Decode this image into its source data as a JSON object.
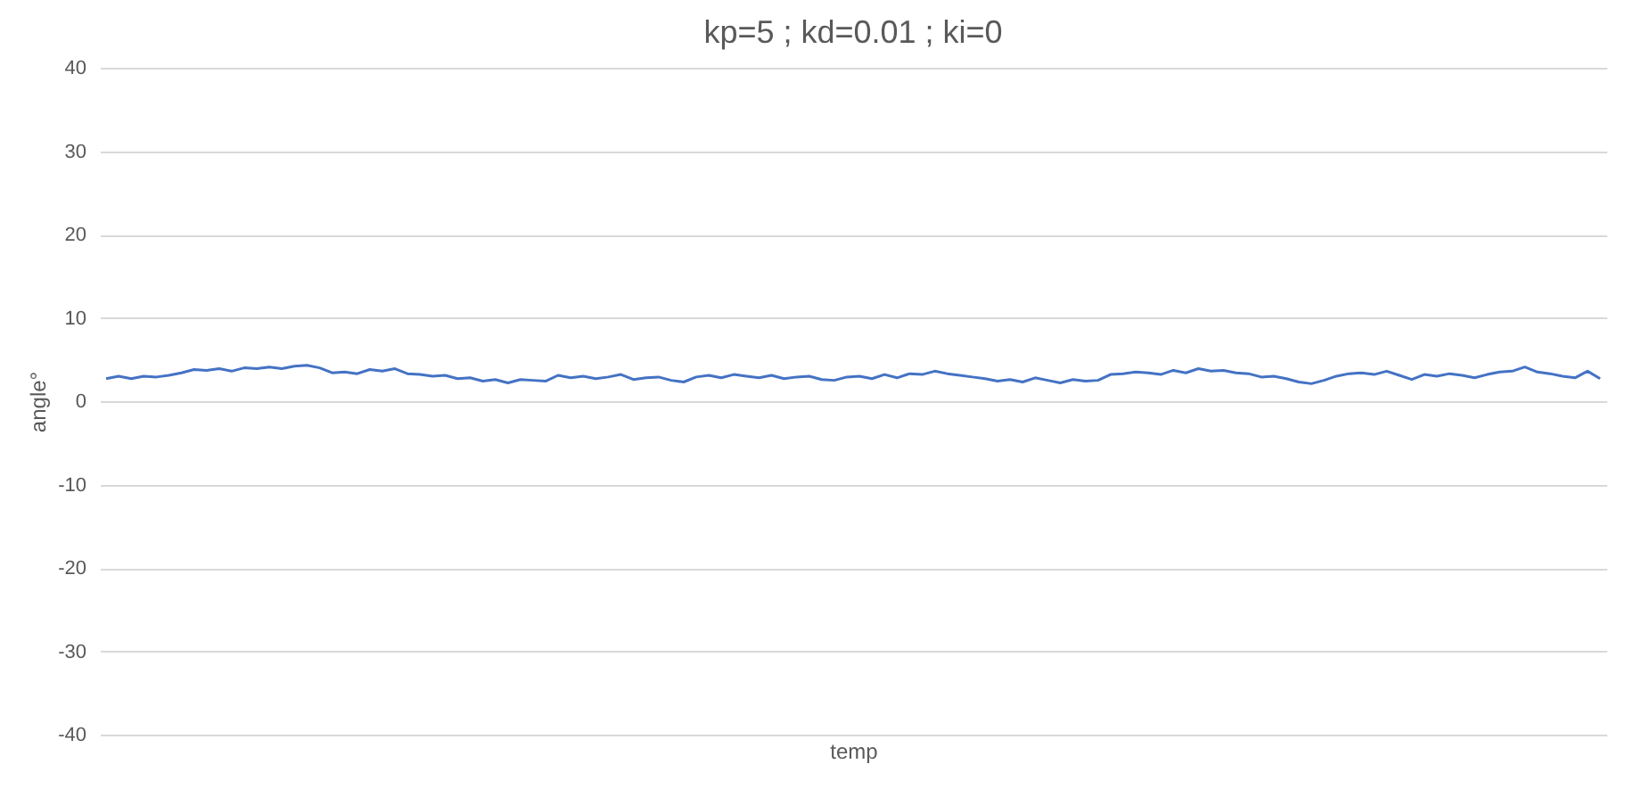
{
  "chart_data": {
    "type": "line",
    "title": "kp=5 ; kd=0.01 ; ki=0",
    "xlabel": "temp",
    "ylabel": "angle°",
    "categories": [
      null,
      null,
      null,
      null,
      null,
      null,
      null,
      null,
      null,
      null,
      null,
      null,
      null,
      null,
      null,
      null,
      null,
      null,
      null,
      null,
      null,
      null,
      null,
      null,
      null,
      null,
      null,
      null,
      null,
      null,
      null,
      null,
      null,
      null,
      null,
      null,
      null,
      null,
      null,
      null,
      null,
      null,
      null,
      null,
      null,
      null,
      null,
      null,
      null,
      null,
      null,
      null,
      null,
      null,
      null,
      null,
      null,
      null,
      null,
      null,
      null,
      null,
      null,
      null,
      null,
      null,
      null,
      null,
      null,
      null,
      null,
      null,
      null,
      null,
      null,
      null,
      null,
      null,
      null,
      null,
      null,
      null,
      null,
      null,
      null,
      null,
      null,
      null,
      null,
      null,
      null,
      null,
      null,
      null,
      null,
      null,
      null,
      null,
      null,
      null,
      null,
      null,
      null,
      null,
      null,
      null,
      null,
      null,
      null,
      null,
      null,
      null,
      null,
      null,
      null,
      null,
      null,
      null,
      null,
      null
    ],
    "series": [
      {
        "color": "#4472c4",
        "values": [
          2.7,
          3.0,
          2.7,
          3.0,
          2.9,
          3.1,
          3.4,
          3.8,
          3.7,
          3.9,
          3.6,
          4.0,
          3.9,
          4.1,
          3.9,
          4.2,
          4.3,
          4.0,
          3.4,
          3.5,
          3.3,
          3.8,
          3.6,
          3.9,
          3.3,
          3.2,
          3.0,
          3.1,
          2.7,
          2.8,
          2.4,
          2.6,
          2.2,
          2.6,
          2.5,
          2.4,
          3.1,
          2.8,
          3.0,
          2.7,
          2.9,
          3.2,
          2.6,
          2.8,
          2.9,
          2.5,
          2.3,
          2.9,
          3.1,
          2.8,
          3.2,
          3.0,
          2.8,
          3.1,
          2.7,
          2.9,
          3.0,
          2.6,
          2.5,
          2.9,
          3.0,
          2.7,
          3.2,
          2.8,
          3.3,
          3.2,
          3.6,
          3.3,
          3.1,
          2.9,
          2.7,
          2.4,
          2.6,
          2.3,
          2.8,
          2.5,
          2.2,
          2.6,
          2.4,
          2.5,
          3.2,
          3.3,
          3.5,
          3.4,
          3.2,
          3.7,
          3.4,
          3.9,
          3.6,
          3.7,
          3.4,
          3.3,
          2.9,
          3.0,
          2.7,
          2.3,
          2.1,
          2.5,
          3.0,
          3.3,
          3.4,
          3.2,
          3.6,
          3.1,
          2.6,
          3.2,
          3.0,
          3.3,
          3.1,
          2.8,
          3.2,
          3.5,
          3.6,
          4.1,
          3.5,
          3.3,
          3.0,
          2.8,
          3.6,
          2.7
        ]
      }
    ],
    "ylim": [
      -40,
      40
    ],
    "yticks": [
      -40,
      -30,
      -20,
      -10,
      0,
      10,
      20,
      30,
      40
    ],
    "grid": "y",
    "marker": "none",
    "line_style": "solid"
  }
}
